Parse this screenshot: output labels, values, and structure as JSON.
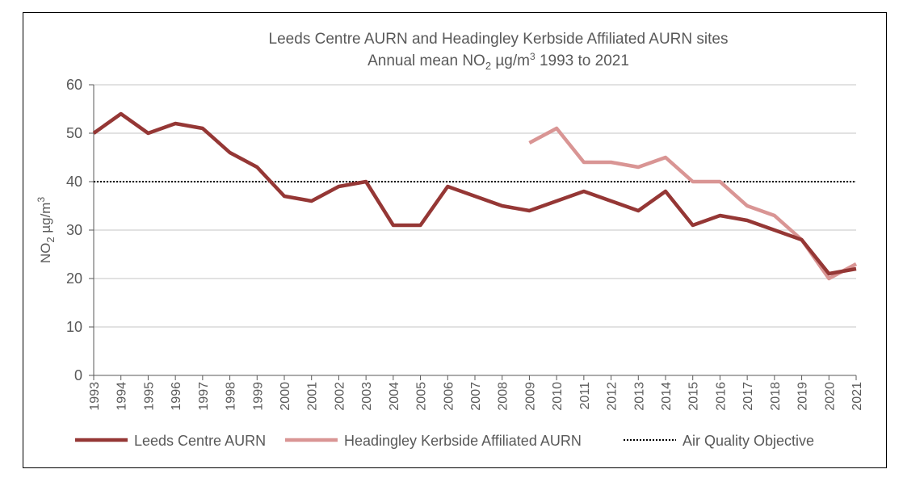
{
  "chart_data": {
    "type": "line",
    "title": "Leeds Centre AURN and Headingley Kerbside Affiliated AURN sites",
    "subtitle_parts": {
      "prefix": "Annual mean NO",
      "sub": "2",
      "mid": " µg/m",
      "sup": "3",
      "suffix": "  1993 to 2021"
    },
    "ylabel_parts": {
      "prefix": "NO",
      "sub": "2",
      "mid": " µg/m",
      "sup": "3"
    },
    "xlabel": "",
    "ylim": [
      0,
      60
    ],
    "yticks": [
      0,
      10,
      20,
      30,
      40,
      50,
      60
    ],
    "grid": true,
    "legend_position": "bottom",
    "x": [
      1993,
      1994,
      1995,
      1996,
      1997,
      1998,
      1999,
      2000,
      2001,
      2002,
      2003,
      2004,
      2005,
      2006,
      2007,
      2008,
      2009,
      2010,
      2011,
      2012,
      2013,
      2014,
      2015,
      2016,
      2017,
      2018,
      2019,
      2020,
      2021
    ],
    "series": [
      {
        "name": "Leeds Centre AURN",
        "color": "#953735",
        "values": [
          50,
          54,
          50,
          52,
          51,
          46,
          43,
          37,
          36,
          39,
          40,
          31,
          31,
          39,
          37,
          35,
          34,
          36,
          38,
          36,
          34,
          38,
          31,
          33,
          32,
          30,
          28,
          21,
          22
        ]
      },
      {
        "name": "Headingley Kerbside Affiliated AURN",
        "color": "#D99594",
        "values": [
          null,
          null,
          null,
          null,
          null,
          null,
          null,
          null,
          null,
          null,
          null,
          null,
          null,
          null,
          null,
          null,
          48,
          51,
          44,
          44,
          43,
          45,
          40,
          40,
          35,
          33,
          28,
          20,
          23
        ]
      },
      {
        "name": "Air Quality Objective",
        "color": "#000000",
        "style": "dotted",
        "values": [
          40,
          40,
          40,
          40,
          40,
          40,
          40,
          40,
          40,
          40,
          40,
          40,
          40,
          40,
          40,
          40,
          40,
          40,
          40,
          40,
          40,
          40,
          40,
          40,
          40,
          40,
          40,
          40,
          40
        ]
      }
    ]
  }
}
